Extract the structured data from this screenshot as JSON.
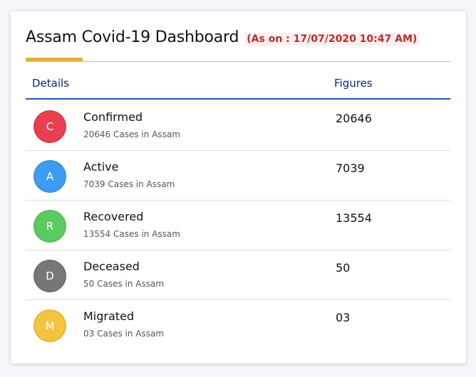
{
  "dashboard": {
    "title": "Assam Covid-19 Dashboard",
    "as_on": "(As on : 17/07/2020 10:47 AM)",
    "columns": {
      "details": "Details",
      "figures": "Figures"
    },
    "colors": {
      "accent": "#e2b134",
      "as_on_text": "#b5302a",
      "header_rule": "#1f5bb5"
    },
    "rows": [
      {
        "initial": "C",
        "label": "Confirmed",
        "sub": "20646 Cases in Assam",
        "figure": "20646",
        "color": "#e8404f"
      },
      {
        "initial": "A",
        "label": "Active",
        "sub": "7039 Cases in Assam",
        "figure": "7039",
        "color": "#3b9cf2"
      },
      {
        "initial": "R",
        "label": "Recovered",
        "sub": "13554 Cases in Assam",
        "figure": "13554",
        "color": "#5ccb5f"
      },
      {
        "initial": "D",
        "label": "Deceased",
        "sub": "50 Cases in Assam",
        "figure": "50",
        "color": "#777777"
      },
      {
        "initial": "M",
        "label": "Migrated",
        "sub": "03 Cases in Assam",
        "figure": "03",
        "color": "#f4c43f"
      }
    ]
  }
}
